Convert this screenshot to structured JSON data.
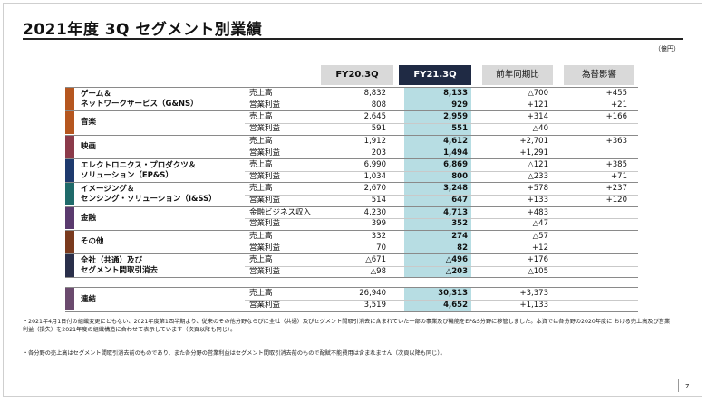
{
  "title": "2021年度 3Q セグメント別業績",
  "unit": "（億円）",
  "headers": {
    "fy20": "FY20.3Q",
    "fy21": "FY21.3Q",
    "yoy": "前年同期比",
    "fx": "為替影響"
  },
  "colors": {
    "fy21_header": "#1f2a44",
    "highlight": "#b7dde3",
    "header_grey": "#d9d9d9"
  },
  "segments": [
    {
      "name": [
        "ゲーム＆",
        "ネットワークサービス（G&NS）"
      ],
      "color": "#b5561f",
      "rows": [
        {
          "label": "売上高",
          "fy20": "8,832",
          "fy21": "8,133",
          "yoy": "△700",
          "fx": "+455"
        },
        {
          "label": "営業利益",
          "fy20": "808",
          "fy21": "929",
          "yoy": "+121",
          "fx": "+21"
        }
      ]
    },
    {
      "name": [
        "音楽"
      ],
      "color": "#b5561f",
      "rows": [
        {
          "label": "売上高",
          "fy20": "2,645",
          "fy21": "2,959",
          "yoy": "+314",
          "fx": "+166"
        },
        {
          "label": "営業利益",
          "fy20": "591",
          "fy21": "551",
          "yoy": "△40",
          "fx": ""
        }
      ]
    },
    {
      "name": [
        "映画"
      ],
      "color": "#8b3a4a",
      "rows": [
        {
          "label": "売上高",
          "fy20": "1,912",
          "fy21": "4,612",
          "yoy": "+2,701",
          "fx": "+363"
        },
        {
          "label": "営業利益",
          "fy20": "203",
          "fy21": "1,494",
          "yoy": "+1,291",
          "fx": ""
        }
      ]
    },
    {
      "name": [
        "エレクトロニクス・プロダクツ＆",
        "ソリューション（EP&S）"
      ],
      "color": "#1e3a6e",
      "rows": [
        {
          "label": "売上高",
          "fy20": "6,990",
          "fy21": "6,869",
          "yoy": "△121",
          "fx": "+385"
        },
        {
          "label": "営業利益",
          "fy20": "1,034",
          "fy21": "800",
          "yoy": "△233",
          "fx": "+71"
        }
      ]
    },
    {
      "name": [
        "イメージング＆",
        "センシング・ソリューション（I&SS）"
      ],
      "color": "#1f6a6a",
      "rows": [
        {
          "label": "売上高",
          "fy20": "2,670",
          "fy21": "3,248",
          "yoy": "+578",
          "fx": "+237"
        },
        {
          "label": "営業利益",
          "fy20": "514",
          "fy21": "647",
          "yoy": "+133",
          "fx": "+120"
        }
      ]
    },
    {
      "name": [
        "金融"
      ],
      "color": "#5a3a6e",
      "rows": [
        {
          "label": "金融ビジネス収入",
          "fy20": "4,230",
          "fy21": "4,713",
          "yoy": "+483",
          "fx": ""
        },
        {
          "label": "営業利益",
          "fy20": "399",
          "fy21": "352",
          "yoy": "△47",
          "fx": ""
        }
      ]
    },
    {
      "name": [
        "その他"
      ],
      "color": "#7a3a1e",
      "rows": [
        {
          "label": "売上高",
          "fy20": "332",
          "fy21": "274",
          "yoy": "△57",
          "fx": ""
        },
        {
          "label": "営業利益",
          "fy20": "70",
          "fy21": "82",
          "yoy": "+12",
          "fx": ""
        }
      ]
    },
    {
      "name": [
        "全社（共通）及び",
        "セグメント間取引消去"
      ],
      "color": "#2a2f4a",
      "rows": [
        {
          "label": "売上高",
          "fy20": "△671",
          "fy21": "△496",
          "yoy": "+176",
          "fx": ""
        },
        {
          "label": "営業利益",
          "fy20": "△98",
          "fy21": "△203",
          "yoy": "△105",
          "fx": ""
        }
      ]
    }
  ],
  "consolidated": {
    "name": "連結",
    "color": "#6b4a6e",
    "rows": [
      {
        "label": "売上高",
        "fy20": "26,940",
        "fy21": "30,313",
        "yoy": "+3,373",
        "fx": ""
      },
      {
        "label": "営業利益",
        "fy20": "3,519",
        "fy21": "4,652",
        "yoy": "+1,133",
        "fx": ""
      }
    ]
  },
  "notes": [
    "・2021年4月1日付の組織変更にともない、2021年度第1四半期より、従来のその他分野ならびに全社（共通）及びセグメント間取引消去に含まれていた一部の事業及び機能をEP&S分野に移管しました。本資では各分野の2020年度に おける売上高及び営業利益（損失）を2021年度の組織構造に合わせて表示しています（次頁以降も同じ）。",
    "・各分野の売上高はセグメント間取引消去前のものであり、また各分野の営業利益はセグメント間取引消去前のもので配賦不能費用は含まれません（次頁以降も同じ）。"
  ],
  "page_number": "7"
}
